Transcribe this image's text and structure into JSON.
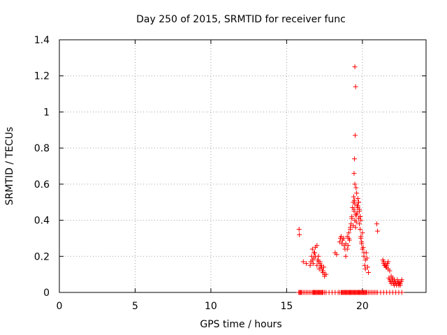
{
  "chart_data": {
    "type": "scatter",
    "title": "Day 250 of 2015, SRMTID for receiver func",
    "xlabel": "GPS time / hours",
    "ylabel": "SRMTID / TECUs",
    "xlim": [
      0,
      24.2
    ],
    "ylim": [
      0,
      1.4
    ],
    "xticks": [
      0,
      5,
      10,
      15,
      20
    ],
    "xtick_labels": [
      "0",
      "5",
      "10",
      "15",
      "20"
    ],
    "yticks": [
      0,
      0.2,
      0.4,
      0.6,
      0.8,
      1.0,
      1.2,
      1.4
    ],
    "ytick_labels": [
      "0",
      "0.2",
      "0.4",
      "0.6",
      "0.8",
      "1",
      "1.2",
      "1.4"
    ],
    "grid": true,
    "marker": "plus",
    "color": "#ff0000",
    "series": [
      {
        "name": "SRMTID",
        "x": [
          15.8,
          15.85,
          15.9,
          15.95,
          16.0,
          16.1,
          16.2,
          16.3,
          16.4,
          16.5,
          16.6,
          16.7,
          16.75,
          16.8,
          16.85,
          16.9,
          16.95,
          17.0,
          17.05,
          17.1,
          17.15,
          17.2,
          17.25,
          17.3,
          17.35,
          17.4,
          17.5,
          17.6,
          17.8,
          18.0,
          18.2,
          18.4,
          18.5,
          18.6,
          18.65,
          18.7,
          18.75,
          18.8,
          18.85,
          18.9,
          18.95,
          19.0,
          19.05,
          19.1,
          19.15,
          19.2,
          19.25,
          19.3,
          19.35,
          19.4,
          19.45,
          19.5,
          19.55,
          19.6,
          19.65,
          19.7,
          19.75,
          19.8,
          19.85,
          19.9,
          19.95,
          20.0,
          20.05,
          20.1,
          20.15,
          20.2,
          20.25,
          20.3,
          20.4,
          20.5,
          20.6,
          20.7,
          20.8,
          20.9,
          21.0,
          21.2,
          21.4,
          21.6,
          21.8,
          22.0,
          22.2,
          22.4,
          22.6,
          15.82,
          15.84,
          16.1,
          16.3,
          16.55,
          16.6,
          16.65,
          16.7,
          16.8,
          16.9,
          17.0,
          17.1,
          17.2,
          17.3,
          17.4,
          17.5,
          17.6,
          18.2,
          18.3,
          18.5,
          18.55,
          18.6,
          18.65,
          18.7,
          18.75,
          18.8,
          18.85,
          18.9,
          19.0,
          19.1,
          19.2,
          19.25,
          19.3,
          19.35,
          19.4,
          19.45,
          19.5,
          19.55,
          19.6,
          19.65,
          19.7,
          19.75,
          19.8,
          19.85,
          19.9,
          19.95,
          20.0,
          20.05,
          20.1,
          20.15,
          20.2,
          20.25,
          20.3,
          20.35,
          20.4,
          20.95,
          21.0,
          21.35,
          21.4,
          21.45,
          21.5,
          21.55,
          21.6,
          21.65,
          21.7,
          21.75,
          21.8,
          21.85,
          21.9,
          21.95,
          22.0,
          22.05,
          22.1,
          22.15,
          22.2,
          22.25,
          22.3,
          22.35,
          22.4,
          22.45,
          22.5,
          22.55,
          22.6,
          16.7,
          16.75,
          16.8,
          16.85,
          16.9,
          17.0,
          17.05,
          17.1,
          17.15,
          17.2,
          17.25,
          17.3,
          17.35,
          17.4,
          17.45,
          17.5,
          18.9,
          19.0,
          19.05,
          19.1,
          19.15,
          19.2,
          19.3,
          19.4,
          19.45,
          19.5,
          19.55,
          19.6,
          19.65,
          19.7,
          19.75,
          19.8,
          19.85,
          19.9,
          19.95,
          20.0,
          20.1,
          20.2,
          21.4,
          21.5,
          21.6,
          21.7,
          21.8,
          21.9,
          22.0,
          22.1,
          22.2,
          22.3,
          22.4,
          22.5,
          19.5,
          19.55,
          19.52,
          19.48,
          19.45,
          19.5,
          19.43,
          19.47,
          19.58,
          19.62,
          19.7,
          19.75,
          19.8,
          19.85,
          19.9
        ],
        "y": [
          0,
          0,
          0,
          0,
          0,
          0,
          0,
          0,
          0,
          0,
          0,
          0,
          0,
          0,
          0,
          0,
          0,
          0,
          0,
          0,
          0,
          0,
          0,
          0,
          0,
          0,
          0,
          0,
          0,
          0,
          0,
          0,
          0,
          0,
          0,
          0,
          0,
          0,
          0,
          0,
          0,
          0,
          0,
          0,
          0,
          0,
          0,
          0,
          0,
          0,
          0,
          0,
          0,
          0,
          0,
          0,
          0,
          0,
          0,
          0,
          0,
          0,
          0,
          0,
          0,
          0,
          0,
          0,
          0,
          0,
          0,
          0,
          0,
          0,
          0,
          0,
          0,
          0,
          0,
          0,
          0,
          0,
          0,
          0.35,
          0.32,
          0.17,
          0.16,
          0.15,
          0.17,
          0.2,
          0.24,
          0.22,
          0.25,
          0.26,
          0.2,
          0.17,
          0.14,
          0.12,
          0.09,
          0.1,
          0.22,
          0.21,
          0.28,
          0.3,
          0.31,
          0.27,
          0.29,
          0.3,
          0.26,
          0.24,
          0.2,
          0.24,
          0.3,
          0.35,
          0.38,
          0.42,
          0.47,
          0.5,
          0.45,
          0.4,
          0.36,
          0.43,
          0.48,
          0.52,
          0.5,
          0.45,
          0.42,
          0.3,
          0.28,
          0.33,
          0.25,
          0.2,
          0.15,
          0.13,
          0.22,
          0.19,
          0.14,
          0.11,
          0.38,
          0.34,
          0.18,
          0.17,
          0.15,
          0.16,
          0.14,
          0.15,
          0.16,
          0.13,
          0.08,
          0.07,
          0.06,
          0.05,
          0.07,
          0.06,
          0.05,
          0.04,
          0.06,
          0.05,
          0.04,
          0.07,
          0.05,
          0.06,
          0.05,
          0.04,
          0.06,
          0.07,
          0.18,
          0.16,
          0.19,
          0.22,
          0.2,
          0.15,
          0.18,
          0.17,
          0.13,
          0.16,
          0.14,
          0.15,
          0.12,
          0.11,
          0.14,
          0.1,
          0.27,
          0.31,
          0.26,
          0.33,
          0.29,
          0.36,
          0.41,
          0.37,
          0.46,
          0.49,
          0.43,
          0.39,
          0.44,
          0.47,
          0.41,
          0.38,
          0.35,
          0.31,
          0.27,
          0.24,
          0.22,
          0.18,
          0.16,
          0.15,
          0.14,
          0.17,
          0.12,
          0.09,
          0.08,
          0.07,
          0.05,
          0.06,
          0.04,
          0.05,
          1.25,
          1.14,
          0.87,
          0.74,
          0.66,
          0.6,
          0.53,
          0.51,
          0.58,
          0.55,
          0.48,
          0.5,
          0.46,
          0.42,
          0.4
        ]
      }
    ]
  }
}
